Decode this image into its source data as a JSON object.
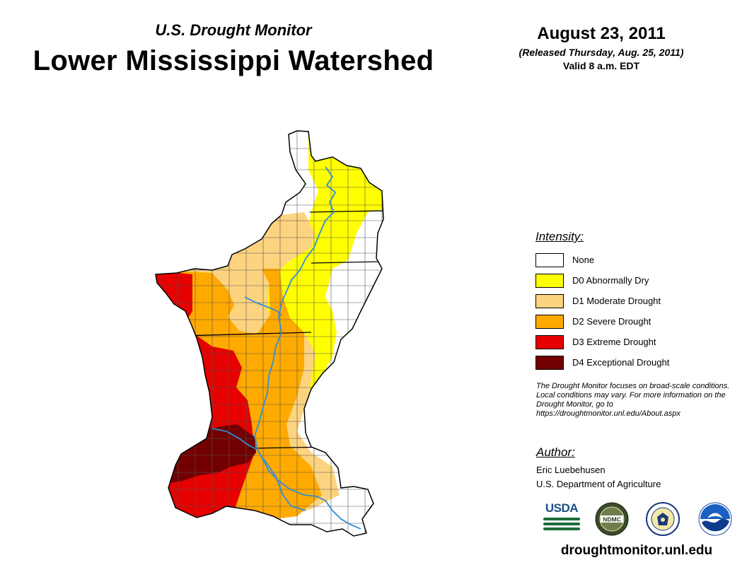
{
  "header": {
    "monitor_title": "U.S. Drought Monitor",
    "region_title": "Lower Mississippi Watershed",
    "date": "August 23, 2011",
    "released": "(Released Thursday, Aug. 25, 2011)",
    "valid": "Valid 8 a.m. EDT"
  },
  "legend": {
    "title": "Intensity:",
    "items": [
      {
        "label": "None",
        "color": "#ffffff"
      },
      {
        "label": "D0 Abnormally Dry",
        "color": "#ffff00"
      },
      {
        "label": "D1 Moderate Drought",
        "color": "#fcd37f"
      },
      {
        "label": "D2 Severe Drought",
        "color": "#ffaa00"
      },
      {
        "label": "D3 Extreme Drought",
        "color": "#e60000"
      },
      {
        "label": "D4 Exceptional Drought",
        "color": "#730000"
      }
    ]
  },
  "note": "The Drought Monitor focuses on broad-scale conditions. Local conditions may vary. For more information on the Drought Monitor, go to https://droughtmonitor.unl.edu/About.aspx",
  "author": {
    "heading": "Author:",
    "name": "Eric Luebehusen",
    "organization": "U.S. Department of Agriculture"
  },
  "logos": {
    "usda": "USDA",
    "ndmc": "NDMC"
  },
  "footer_url": "droughtmonitor.unl.edu",
  "colors": {
    "river": "#2f8fd8",
    "county_lines": "#555555",
    "state_lines": "#000000"
  }
}
